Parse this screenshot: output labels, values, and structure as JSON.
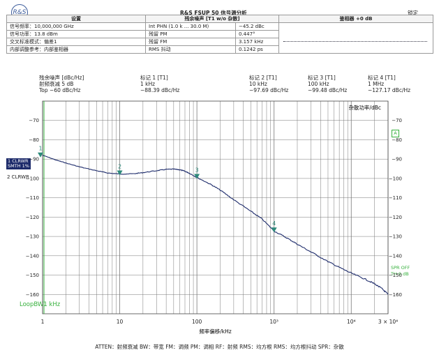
{
  "header": {
    "logo": "R&S",
    "title": "R&S FSUP 50 信号源分析",
    "lock": "锁定"
  },
  "info_table": {
    "col_settings": "设置",
    "col_residual": "残余噪声 [T1 w/o 杂散]",
    "col_phase_detector": "鉴相器 +0 dB",
    "rows": [
      {
        "label": "信号频率：10,000,000 GHz",
        "key": "Int PHN (1.0 k ... 30.0 M)",
        "value": "−45.2 dBc"
      },
      {
        "label": "信号功率：13.8 dBm",
        "key": "残留 PM",
        "value": "0.447°"
      },
      {
        "label": "交叉标准模式：偏差1",
        "key": "残留 FM",
        "value": "3.157 kHz"
      },
      {
        "label": "内部调整参考：内部鉴相器",
        "key": "RMS 抖动",
        "value": "0.1242 ps"
      }
    ]
  },
  "marker_header": {
    "col0": [
      "残余噪声 [dBc/Hz]",
      "射频衰减        5 dB",
      "Top −60 dBc/Hz"
    ],
    "m1": [
      "标记 1 [T1]",
      "1 kHz",
      "−88.39 dBc/Hz"
    ],
    "m2": [
      "标记 2 [T1]",
      "10 kHz",
      "−97.69 dBc/Hz"
    ],
    "m3": [
      "标记 3 [T1]",
      "100 kHz",
      "−99.48 dBc/Hz"
    ],
    "m4": [
      "标记 4 [T1]",
      "1 MHz",
      "−127.17 dBc/Hz"
    ]
  },
  "side_labels": {
    "trace1_line1": "1 CLRWR",
    "trace1_line2": "SMTH 1%",
    "trace2": "2 CLRWR",
    "a_badge": "A",
    "spr_off": "SPR OFF",
    "th": "TH 0 dB",
    "loopbw": "LoopBW1 kHz"
  },
  "chart_data": {
    "type": "line",
    "title": "",
    "ylabel_right": "杂散功率/dBc",
    "xlabel": "频率偏移/kHz",
    "x_scale": "log",
    "xlim": [
      1,
      30000
    ],
    "ylim": [
      -170,
      -60
    ],
    "grid": true,
    "x_ticks": [
      {
        "v": 1,
        "label": "1"
      },
      {
        "v": 10,
        "label": "10"
      },
      {
        "v": 100,
        "label": "100"
      },
      {
        "v": 1000,
        "label": "10³"
      },
      {
        "v": 10000,
        "label": "10⁴"
      },
      {
        "v": 30000,
        "label": "3 × 10⁴"
      }
    ],
    "y_ticks": [
      -70,
      -80,
      -90,
      -100,
      -110,
      -120,
      -130,
      -140,
      -150,
      -160
    ],
    "y_tick_labels": [
      "−70",
      "−80",
      "−90",
      "−100",
      "−110",
      "−120",
      "−130",
      "−140",
      "−150",
      "−160"
    ],
    "series": [
      {
        "points": [
          [
            1,
            -88
          ],
          [
            1.5,
            -90.5
          ],
          [
            2,
            -92
          ],
          [
            3,
            -94
          ],
          [
            5,
            -96
          ],
          [
            7,
            -97.2
          ],
          [
            10,
            -97.7
          ],
          [
            15,
            -97.6
          ],
          [
            20,
            -97
          ],
          [
            30,
            -96
          ],
          [
            40,
            -95.3
          ],
          [
            50,
            -95.2
          ],
          [
            60,
            -95.5
          ],
          [
            70,
            -96.3
          ],
          [
            80,
            -97.3
          ],
          [
            100,
            -99.5
          ],
          [
            150,
            -103
          ],
          [
            200,
            -106
          ],
          [
            300,
            -111
          ],
          [
            500,
            -117
          ],
          [
            700,
            -121
          ],
          [
            1000,
            -127.2
          ],
          [
            1500,
            -131
          ],
          [
            2000,
            -134
          ],
          [
            3000,
            -138
          ],
          [
            5000,
            -143
          ],
          [
            7000,
            -146
          ],
          [
            10000,
            -149
          ],
          [
            15000,
            -152
          ],
          [
            20000,
            -154.5
          ],
          [
            25000,
            -157
          ],
          [
            30000,
            -160
          ]
        ]
      }
    ],
    "markers": [
      {
        "label": "1",
        "x": 1,
        "y": -88.39
      },
      {
        "label": "2",
        "x": 10,
        "y": -97.69
      },
      {
        "label": "3",
        "x": 100,
        "y": -99.48
      },
      {
        "label": "4",
        "x": 1000,
        "y": -127.17
      }
    ]
  },
  "footer": "ATTEN：射频衰减    BW：带宽    FM：调频    PM：调相    RF：射频    RMS：均方根    RMS：均方根抖动    SPR：杂散"
}
